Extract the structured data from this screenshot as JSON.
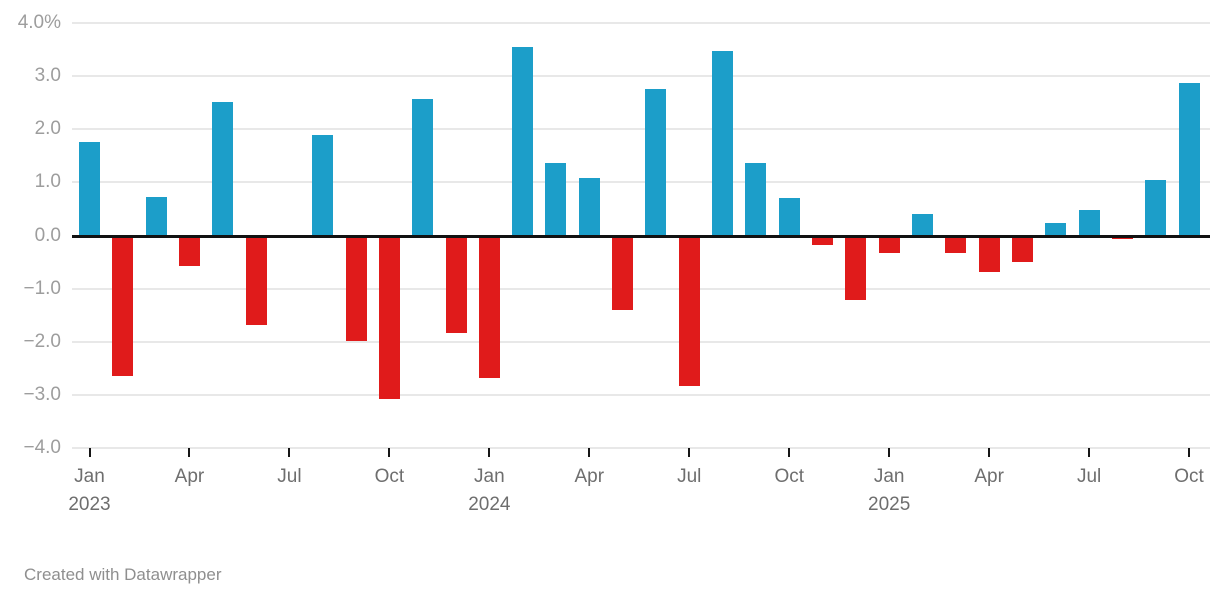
{
  "chart_data": {
    "type": "bar",
    "title": "",
    "unit": "%",
    "categories": [
      "Jan 2023",
      "Feb 2023",
      "Mar 2023",
      "Apr 2023",
      "May 2023",
      "Jun 2023",
      "Jul 2023",
      "Aug 2023",
      "Sep 2023",
      "Oct 2023",
      "Nov 2023",
      "Dec 2023",
      "Jan 2024",
      "Feb 2024",
      "Mar 2024",
      "Apr 2024",
      "May 2024",
      "Jun 2024",
      "Jul 2024",
      "Aug 2024",
      "Sep 2024",
      "Oct 2024",
      "Nov 2024",
      "Dec 2024",
      "Jan 2025",
      "Feb 2025",
      "Mar 2025",
      "Apr 2025",
      "May 2025",
      "Jun 2025",
      "Jul 2025",
      "Aug 2025",
      "Sep 2025",
      "Oct 2025"
    ],
    "values": [
      1.76,
      -2.65,
      0.73,
      -0.58,
      2.52,
      -1.68,
      -0.05,
      1.9,
      -1.98,
      -3.08,
      2.57,
      -1.84,
      -2.69,
      3.54,
      1.37,
      1.09,
      -1.41,
      2.76,
      -2.83,
      3.48,
      1.37,
      0.71,
      -0.18,
      -1.21,
      -0.33,
      0.41,
      -0.32,
      -0.69,
      -0.49,
      0.24,
      0.48,
      -0.06,
      1.05,
      2.87
    ],
    "ylim": [
      -4,
      4
    ],
    "grid": true,
    "legend_position": "none",
    "xlabel": "",
    "ylabel": "",
    "y_ticks": [
      {
        "value": 4,
        "label": "4.0%"
      },
      {
        "value": 3,
        "label": "3.0"
      },
      {
        "value": 2,
        "label": "2.0"
      },
      {
        "value": 1,
        "label": "1.0"
      },
      {
        "value": 0,
        "label": "0.0"
      },
      {
        "value": -1,
        "label": "−1.0"
      },
      {
        "value": -2,
        "label": "−2.0"
      },
      {
        "value": -3,
        "label": "−3.0"
      },
      {
        "value": -4,
        "label": "−4.0"
      }
    ],
    "x_ticks": [
      {
        "index": 0,
        "label": "Jan",
        "year": "2023"
      },
      {
        "index": 3,
        "label": "Apr"
      },
      {
        "index": 6,
        "label": "Jul"
      },
      {
        "index": 9,
        "label": "Oct"
      },
      {
        "index": 12,
        "label": "Jan",
        "year": "2024"
      },
      {
        "index": 15,
        "label": "Apr"
      },
      {
        "index": 18,
        "label": "Jul"
      },
      {
        "index": 21,
        "label": "Oct"
      },
      {
        "index": 24,
        "label": "Jan",
        "year": "2025"
      },
      {
        "index": 27,
        "label": "Apr"
      },
      {
        "index": 30,
        "label": "Jul"
      },
      {
        "index": 33,
        "label": "Oct"
      }
    ],
    "positive_color": "#1c9ec9",
    "negative_color": "#e01b1b",
    "gridline_color": "#e8e8e8",
    "baseline_color": "#121212"
  },
  "footer": {
    "credit": "Created with Datawrapper"
  }
}
